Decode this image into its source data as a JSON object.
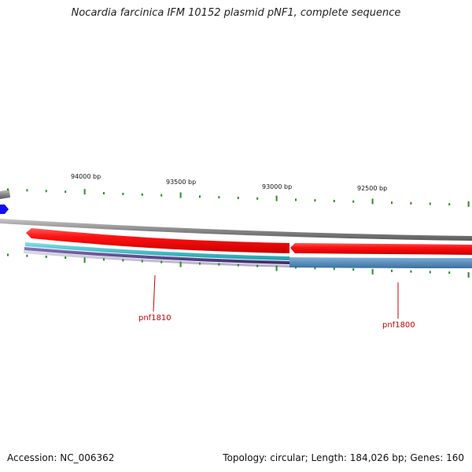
{
  "title": "Nocardia farcinica IFM 10152 plasmid pNF1, complete sequence",
  "footer": {
    "accession": "Accession: NC_006362",
    "summary": "Topology: circular; Length: 184,026 bp; Genes: 160"
  },
  "ruler_labels": [
    "94000 bp",
    "93500 bp",
    "93000 bp",
    "92500 bp"
  ],
  "genes": [
    {
      "name": "pnf1810"
    },
    {
      "name": "pnf1800"
    }
  ],
  "colors": {
    "forward_cds": "#ee0000",
    "backbone": "#8a8a8a",
    "teal_track": "#33b8c4",
    "steelblue_track": "#4a86b8",
    "purple_track": "#5a4a8a",
    "tick": "#2a8a2a",
    "gene_label": "#cc0000",
    "marker_arrow": "#1010ee"
  }
}
